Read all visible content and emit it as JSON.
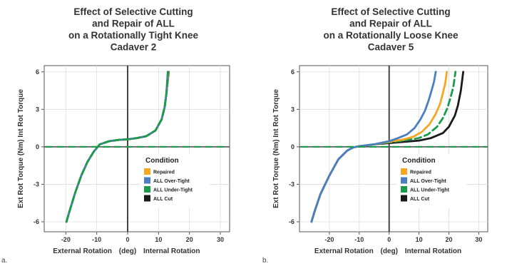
{
  "chart_data": [
    {
      "type": "line",
      "panel_label": "a.",
      "title": [
        "Effect of Selective Cutting",
        "and Repair of ALL",
        "on a Rotationally Tight Knee",
        "Cadaver 2"
      ],
      "ylabel": "Ext Rot Torque (Nm)  Int Rot Torque",
      "xlabel": [
        "External Rotation",
        "(deg)",
        "Internal Rotation"
      ],
      "xlim": [
        -27,
        33
      ],
      "ylim": [
        -6.8,
        6.5
      ],
      "xticks": [
        -20,
        -10,
        0,
        10,
        20,
        30
      ],
      "yticks": [
        6,
        3,
        0,
        -3,
        -6
      ],
      "grid": true,
      "legend": {
        "title": "Condition",
        "position": "bottom-right",
        "entries": [
          {
            "label": "Repaired",
            "color": "#f5a623"
          },
          {
            "label": "ALL Over-Tight",
            "color": "#4a7fc1"
          },
          {
            "label": "ALL Under-Tight",
            "color": "#1a9b4b"
          },
          {
            "label": "ALL Cut",
            "color": "#1a1a1a"
          }
        ]
      },
      "series": [
        {
          "name": "ALL Cut",
          "color": "#1a1a1a",
          "dash": false,
          "x": [
            -19.8,
            -19,
            -17,
            -15,
            -13,
            -11,
            -9,
            -6,
            -3,
            0,
            3,
            6,
            9,
            11,
            12,
            12.5,
            13.3
          ],
          "y": [
            -6.0,
            -5.3,
            -3.7,
            -2.3,
            -1.2,
            -0.4,
            0.2,
            0.45,
            0.55,
            0.6,
            0.7,
            0.85,
            1.3,
            2.2,
            3.2,
            4.2,
            6.0
          ]
        },
        {
          "name": "Repaired",
          "color": "#f5a623",
          "dash": false,
          "x": [
            -19.8,
            -19,
            -17,
            -15,
            -13,
            -11,
            -9,
            -6,
            -3,
            0,
            3,
            6,
            9,
            11,
            12,
            12.5,
            13.2
          ],
          "y": [
            -6.0,
            -5.3,
            -3.7,
            -2.3,
            -1.2,
            -0.4,
            0.2,
            0.45,
            0.55,
            0.6,
            0.7,
            0.85,
            1.3,
            2.2,
            3.2,
            4.2,
            6.0
          ]
        },
        {
          "name": "ALL Over-Tight",
          "color": "#4a7fc1",
          "dash": false,
          "x": [
            -19.8,
            -19,
            -17,
            -15,
            -13,
            -11,
            -9,
            -6,
            -3,
            0,
            3,
            6,
            9,
            11,
            12,
            12.5,
            13.0
          ],
          "y": [
            -6.0,
            -5.3,
            -3.7,
            -2.3,
            -1.2,
            -0.4,
            0.2,
            0.45,
            0.55,
            0.6,
            0.7,
            0.85,
            1.3,
            2.2,
            3.2,
            4.2,
            6.0
          ]
        },
        {
          "name": "ALL Under-Tight",
          "color": "#1a9b4b",
          "dash": true,
          "x": [
            -19.8,
            -19,
            -17,
            -15,
            -13,
            -11,
            -9,
            -6,
            -3,
            0,
            3,
            6,
            9,
            11,
            12,
            12.5,
            13.1
          ],
          "y": [
            -6.0,
            -5.3,
            -3.7,
            -2.3,
            -1.2,
            -0.4,
            0.2,
            0.45,
            0.55,
            0.6,
            0.7,
            0.85,
            1.3,
            2.2,
            3.2,
            4.2,
            6.0
          ]
        }
      ]
    },
    {
      "type": "line",
      "panel_label": "b.",
      "title": [
        "Effect of Selective Cutting",
        "and Repair of ALL",
        "on a Rotationally Loose Knee",
        "Cadaver 5"
      ],
      "ylabel": "Ext Rot Torque (Nm)  Int Rot Torque",
      "xlabel": [
        "External Rotation",
        "(deg)",
        "Internal Rotation"
      ],
      "xlim": [
        -30,
        33
      ],
      "ylim": [
        -6.8,
        6.5
      ],
      "xticks": [
        -20,
        -10,
        0,
        10,
        20,
        30
      ],
      "yticks": [
        6,
        3,
        0,
        -3,
        -6
      ],
      "grid": true,
      "legend": {
        "title": "Condition",
        "position": "bottom-right",
        "entries": [
          {
            "label": "Repaired",
            "color": "#f5a623"
          },
          {
            "label": "ALL Over-Tight",
            "color": "#4a7fc1"
          },
          {
            "label": "ALL Under-Tight",
            "color": "#1a9b4b"
          },
          {
            "label": "ALL Cut",
            "color": "#1a1a1a"
          }
        ]
      },
      "series": [
        {
          "name": "ALL Cut",
          "color": "#1a1a1a",
          "dash": false,
          "x": [
            -26,
            -25,
            -23,
            -20,
            -17,
            -14,
            -12,
            -10,
            -5,
            0,
            5,
            10,
            14,
            18,
            20,
            22,
            23,
            24,
            24.8
          ],
          "y": [
            -6.0,
            -5.2,
            -3.8,
            -2.3,
            -1.0,
            -0.3,
            -0.05,
            0.05,
            0.2,
            0.3,
            0.4,
            0.5,
            0.7,
            1.1,
            1.6,
            2.5,
            3.3,
            4.5,
            6.0
          ]
        },
        {
          "name": "ALL Under-Tight",
          "color": "#1a9b4b",
          "dash": true,
          "x": [
            -26,
            -25,
            -23,
            -20,
            -17,
            -14,
            -12,
            -10,
            -5,
            0,
            5,
            10,
            13,
            16,
            18,
            19.5,
            20.5,
            21.5,
            22.2
          ],
          "y": [
            -6.0,
            -5.2,
            -3.8,
            -2.3,
            -1.0,
            -0.3,
            -0.05,
            0.05,
            0.2,
            0.35,
            0.5,
            0.7,
            1.0,
            1.6,
            2.3,
            3.1,
            3.9,
            4.8,
            6.0
          ]
        },
        {
          "name": "Repaired",
          "color": "#f5a623",
          "dash": false,
          "x": [
            -26,
            -25,
            -23,
            -20,
            -17,
            -14,
            -12,
            -10,
            -5,
            0,
            5,
            8,
            11,
            13.5,
            15.5,
            17,
            18,
            18.8,
            19.3
          ],
          "y": [
            -6.0,
            -5.2,
            -3.8,
            -2.3,
            -1.0,
            -0.3,
            -0.05,
            0.05,
            0.2,
            0.4,
            0.6,
            0.8,
            1.2,
            1.8,
            2.6,
            3.4,
            4.3,
            5.1,
            6.0
          ]
        },
        {
          "name": "ALL Over-Tight",
          "color": "#4a7fc1",
          "dash": false,
          "x": [
            -26,
            -25,
            -23,
            -20,
            -17,
            -14,
            -12,
            -10,
            -5,
            0,
            3,
            6,
            8.5,
            10.5,
            12,
            13.2,
            14.2,
            15.0,
            15.6
          ],
          "y": [
            -6.0,
            -5.2,
            -3.8,
            -2.3,
            -1.0,
            -0.3,
            -0.05,
            0.05,
            0.2,
            0.45,
            0.7,
            1.0,
            1.5,
            2.2,
            2.9,
            3.7,
            4.5,
            5.2,
            6.0
          ]
        }
      ]
    }
  ]
}
